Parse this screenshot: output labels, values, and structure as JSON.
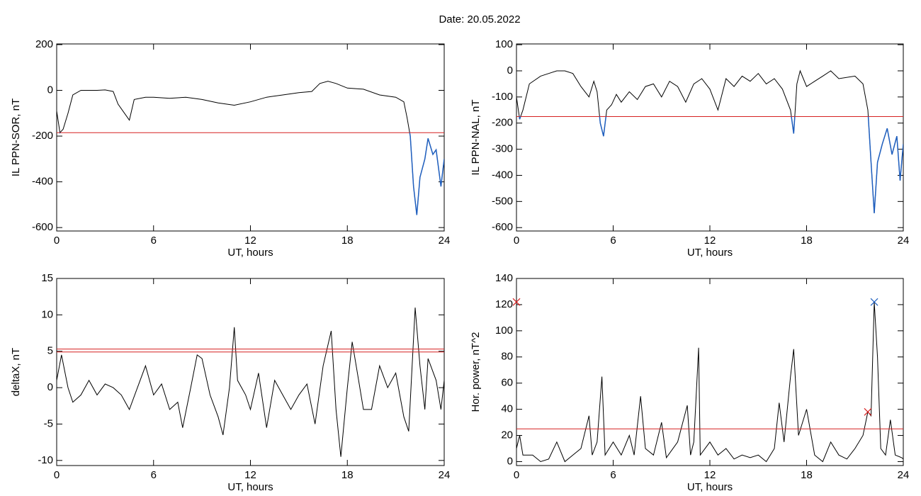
{
  "title": "Date:  20.05.2022",
  "chart_data": [
    {
      "type": "line",
      "x_label": "UT, hours",
      "y_label": "IL PPN-SOR, nT",
      "xlim": [
        0,
        24
      ],
      "xticks": [
        0,
        6,
        12,
        18,
        24
      ],
      "ylim": [
        -615,
        203
      ],
      "yticks": [
        200,
        0,
        -200,
        -400,
        -600
      ],
      "color": "#000000",
      "below_color": "#1f5fbf",
      "hlines": [
        {
          "value": -185,
          "color": "#d62020"
        }
      ],
      "x": [
        0,
        0.2,
        0.4,
        0.7,
        1,
        1.5,
        2,
        2.5,
        3,
        3.5,
        3.8,
        4.2,
        4.5,
        4.8,
        5.5,
        6,
        7,
        8,
        9,
        10,
        11,
        12,
        13,
        14,
        15,
        15.8,
        16.3,
        16.8,
        17.3,
        18,
        19,
        20,
        21,
        21.5,
        21.7,
        21.9,
        22.1,
        22.3,
        22.5,
        22.8,
        23,
        23.3,
        23.5,
        23.8,
        24
      ],
      "values": [
        -90,
        -185,
        -170,
        -100,
        -20,
        0,
        0,
        0,
        2,
        -5,
        -60,
        -100,
        -130,
        -40,
        -30,
        -30,
        -35,
        -30,
        -40,
        -55,
        -65,
        -50,
        -30,
        -20,
        -10,
        -5,
        30,
        40,
        30,
        10,
        5,
        -20,
        -30,
        -50,
        -120,
        -200,
        -420,
        -545,
        -380,
        -300,
        -210,
        -280,
        -260,
        -420,
        -300
      ]
    },
    {
      "type": "line",
      "x_label": "UT, hours",
      "y_label": "IL PPN-NAL, nT",
      "xlim": [
        0,
        24
      ],
      "xticks": [
        0,
        6,
        12,
        18,
        24
      ],
      "ylim": [
        -613,
        103
      ],
      "yticks": [
        100,
        0,
        -100,
        -200,
        -300,
        -400,
        -500,
        -600
      ],
      "color": "#000000",
      "below_color": "#1f5fbf",
      "hlines": [
        {
          "value": -175,
          "color": "#d62020"
        }
      ],
      "x": [
        0,
        0.2,
        0.4,
        0.8,
        1.5,
        2,
        2.5,
        3,
        3.5,
        4,
        4.5,
        4.8,
        5,
        5.2,
        5.4,
        5.6,
        5.9,
        6.2,
        6.5,
        7,
        7.5,
        8,
        8.5,
        9,
        9.5,
        10,
        10.5,
        11,
        11.5,
        12,
        12.5,
        13,
        13.5,
        14,
        14.5,
        15,
        15.5,
        16,
        16.5,
        17,
        17.2,
        17.4,
        17.6,
        18,
        18.5,
        19,
        19.5,
        20,
        21,
        21.5,
        21.8,
        22,
        22.2,
        22.4,
        22.7,
        23,
        23.3,
        23.6,
        23.8,
        24
      ],
      "values": [
        -100,
        -185,
        -150,
        -50,
        -20,
        -10,
        0,
        0,
        -10,
        -60,
        -100,
        -40,
        -80,
        -200,
        -250,
        -150,
        -130,
        -90,
        -120,
        -80,
        -110,
        -60,
        -50,
        -100,
        -40,
        -60,
        -120,
        -50,
        -30,
        -70,
        -150,
        -30,
        -60,
        -20,
        -40,
        -10,
        -50,
        -30,
        -70,
        -150,
        -240,
        -50,
        0,
        -60,
        -40,
        -20,
        0,
        -30,
        -20,
        -50,
        -150,
        -350,
        -545,
        -350,
        -280,
        -220,
        -320,
        -250,
        -420,
        -280
      ]
    },
    {
      "type": "line",
      "x_label": "UT, hours",
      "y_label": "deltaX, nT",
      "xlim": [
        0,
        24
      ],
      "xticks": [
        0,
        6,
        12,
        18,
        24
      ],
      "ylim": [
        -10.7,
        15
      ],
      "yticks": [
        15,
        10,
        5,
        0,
        -5,
        -10
      ],
      "color": "#000000",
      "hlines": [
        {
          "value": 5.3,
          "color": "#d62020"
        },
        {
          "value": 4.9,
          "color": "#d62020"
        }
      ],
      "x": [
        0,
        0.3,
        0.7,
        1,
        1.5,
        2,
        2.5,
        3,
        3.5,
        4,
        4.5,
        5,
        5.5,
        6,
        6.5,
        7,
        7.5,
        7.8,
        8.3,
        8.7,
        9,
        9.5,
        10,
        10.3,
        10.7,
        11,
        11.2,
        11.7,
        12,
        12.5,
        13,
        13.5,
        14,
        14.5,
        15,
        15.5,
        16,
        16.5,
        17,
        17.3,
        17.6,
        18,
        18.3,
        18.7,
        19,
        19.5,
        20,
        20.5,
        21,
        21.5,
        21.8,
        22.2,
        22.5,
        22.8,
        23,
        23.5,
        23.8,
        24
      ],
      "values": [
        1,
        4.5,
        0,
        -2,
        -1,
        1,
        -1,
        0.5,
        0,
        -1,
        -3,
        0,
        3,
        -1,
        0.5,
        -3,
        -2,
        -5.5,
        0,
        4.5,
        4,
        -1,
        -4,
        -6.5,
        0,
        8.3,
        1,
        -1,
        -3,
        2,
        -5.5,
        1,
        -1,
        -3,
        -1,
        0.5,
        -5,
        3,
        7.8,
        -3,
        -9.5,
        0,
        6.3,
        1,
        -3,
        -3,
        3,
        0,
        2,
        -4,
        -6,
        11,
        3,
        -3,
        4,
        1,
        -3,
        1
      ]
    },
    {
      "type": "line",
      "x_label": "UT, hours",
      "y_label": "Hor. power, nT^2",
      "xlim": [
        0,
        24
      ],
      "xticks": [
        0,
        6,
        12,
        18,
        24
      ],
      "ylim": [
        -3,
        140
      ],
      "yticks": [
        140,
        120,
        100,
        80,
        60,
        40,
        20,
        0
      ],
      "color": "#000000",
      "hlines": [
        {
          "value": 25,
          "color": "#d62020"
        }
      ],
      "markers": [
        {
          "x": 22.2,
          "y": 122,
          "color": "#1f5fbf"
        },
        {
          "x": 21.8,
          "y": 38,
          "color": "#d62020"
        },
        {
          "x": 0,
          "y": 122,
          "color": "#d62020"
        }
      ],
      "x": [
        0,
        0.2,
        0.4,
        1,
        1.5,
        2,
        2.5,
        3,
        3.5,
        4,
        4.5,
        4.7,
        5,
        5.3,
        5.5,
        6,
        6.5,
        7,
        7.3,
        7.7,
        8,
        8.5,
        9,
        9.3,
        10,
        10.6,
        10.8,
        11,
        11.3,
        11.4,
        12,
        12.5,
        13,
        13.5,
        14,
        14.5,
        15,
        15.5,
        16,
        16.3,
        16.6,
        17,
        17.2,
        17.5,
        18,
        18.5,
        19,
        19.5,
        20,
        20.5,
        21,
        21.5,
        21.8,
        22,
        22.2,
        22.4,
        22.6,
        22.9,
        23.2,
        23.5,
        23.9,
        24
      ],
      "values": [
        10,
        20,
        5,
        5,
        0,
        2,
        15,
        0,
        5,
        10,
        35,
        5,
        15,
        65,
        5,
        15,
        5,
        20,
        5,
        50,
        10,
        5,
        30,
        3,
        15,
        43,
        5,
        15,
        87,
        5,
        15,
        5,
        10,
        2,
        5,
        3,
        5,
        0,
        10,
        45,
        15,
        65,
        86,
        20,
        40,
        5,
        0,
        15,
        5,
        2,
        10,
        20,
        38,
        35,
        122,
        80,
        10,
        5,
        32,
        5,
        3,
        2
      ]
    }
  ]
}
